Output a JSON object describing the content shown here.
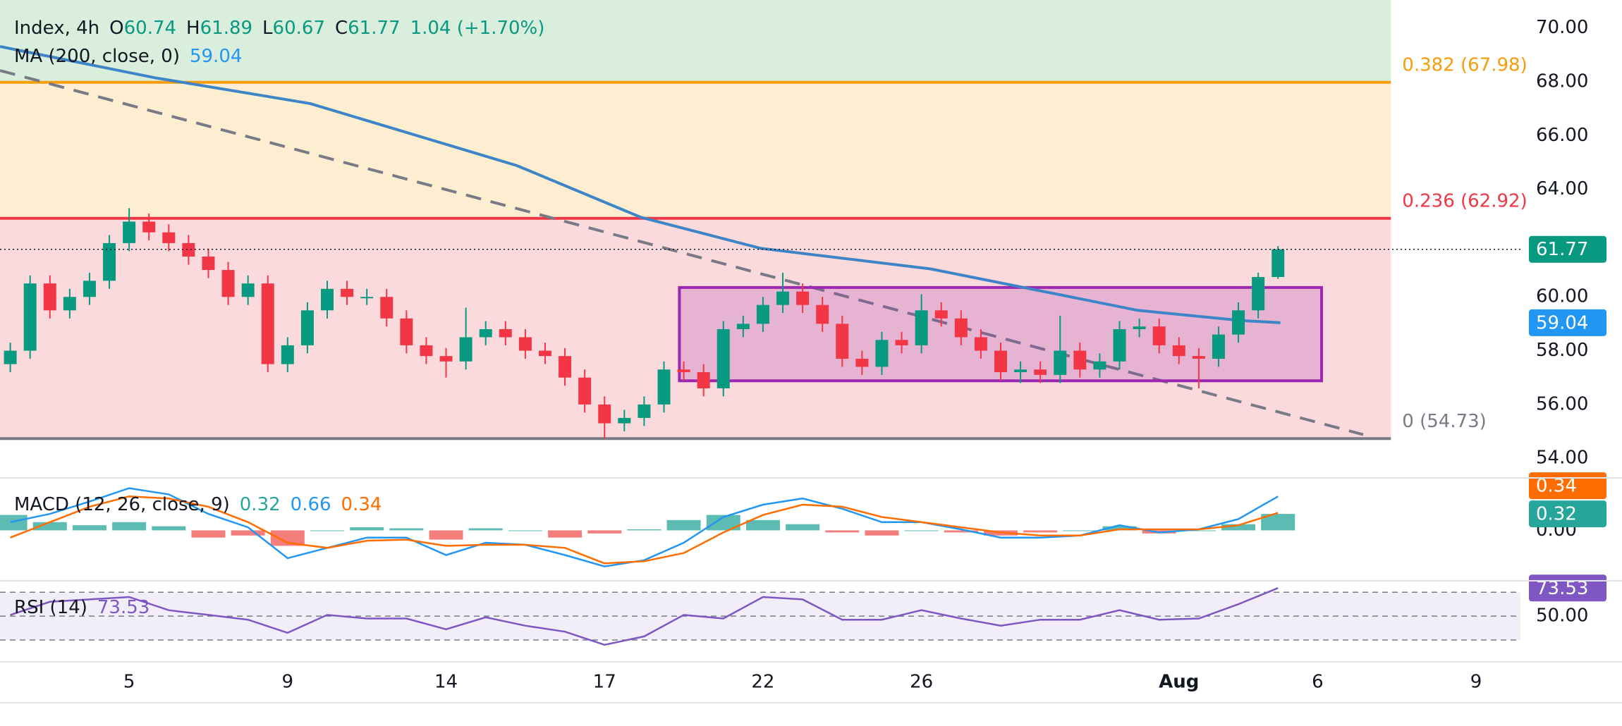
{
  "header": {
    "symbol": "Index, 4h",
    "fields": [
      {
        "key": "O",
        "value": "60.74"
      },
      {
        "key": "H",
        "value": "61.89"
      },
      {
        "key": "L",
        "value": "60.67"
      },
      {
        "key": "C",
        "value": "61.77"
      }
    ],
    "change": "1.04 (+1.70%)",
    "ma_label": "MA (200, close, 0)",
    "ma_value": "59.04"
  },
  "chart_data": [
    {
      "type": "candlestick",
      "up_color": "#089981",
      "down_color": "#f23645",
      "x": [
        -3,
        -2.5,
        -2,
        -1.5,
        -1,
        -0.5,
        0,
        0.5,
        1,
        1.5,
        2,
        2.5,
        3,
        3.5,
        4,
        4.5,
        5,
        5.5,
        6,
        6.5,
        7,
        7.5,
        8,
        8.5,
        9,
        9.5,
        10,
        10.5,
        11,
        11.5,
        12,
        12.5,
        13,
        13.5,
        14,
        14.5,
        15,
        15.5,
        16,
        16.5,
        17,
        17.5,
        18,
        18.5,
        19,
        19.5,
        20,
        20.5,
        21,
        21.5,
        22,
        22.5,
        23,
        23.5,
        24,
        24.5,
        25,
        25.5,
        26,
        26.5,
        27,
        27.5,
        28,
        28.5,
        29
      ],
      "open": [
        57.5,
        58.0,
        60.5,
        59.5,
        60.0,
        60.6,
        62.0,
        62.8,
        62.4,
        62.0,
        61.5,
        61.0,
        60.0,
        60.5,
        57.5,
        58.2,
        59.5,
        60.3,
        60.0,
        60.0,
        59.2,
        58.2,
        57.8,
        57.6,
        58.5,
        58.8,
        58.5,
        58.0,
        57.8,
        57.0,
        56.0,
        55.3,
        55.5,
        56.0,
        57.3,
        57.2,
        56.6,
        58.8,
        59.0,
        59.7,
        60.2,
        59.7,
        59.0,
        57.7,
        57.4,
        58.4,
        58.2,
        59.5,
        59.2,
        58.5,
        58.0,
        57.2,
        57.3,
        57.1,
        58.0,
        57.3,
        57.6,
        58.8,
        58.9,
        58.2,
        57.8,
        57.7,
        58.6,
        59.5,
        60.74
      ],
      "high": [
        58.3,
        60.8,
        60.8,
        60.3,
        60.9,
        62.3,
        63.3,
        63.1,
        62.7,
        62.3,
        61.8,
        61.3,
        60.8,
        60.8,
        58.5,
        59.8,
        60.6,
        60.6,
        60.3,
        60.3,
        59.5,
        58.5,
        58.1,
        59.6,
        59.1,
        59.1,
        58.8,
        58.3,
        58.1,
        57.3,
        56.3,
        55.8,
        56.3,
        57.6,
        57.6,
        57.5,
        59.1,
        59.3,
        60.0,
        60.9,
        60.5,
        60.0,
        59.3,
        58.0,
        58.7,
        58.7,
        60.1,
        59.8,
        59.5,
        58.8,
        58.3,
        57.6,
        57.6,
        59.3,
        58.3,
        57.9,
        59.1,
        59.2,
        59.2,
        58.5,
        58.1,
        58.9,
        59.8,
        60.9,
        61.89
      ],
      "low": [
        57.2,
        57.7,
        59.2,
        59.2,
        59.7,
        60.3,
        61.7,
        62.1,
        61.7,
        61.2,
        60.7,
        59.7,
        59.7,
        57.2,
        57.2,
        57.9,
        59.2,
        59.7,
        59.7,
        58.9,
        57.9,
        57.5,
        57.0,
        57.3,
        58.2,
        58.2,
        57.7,
        57.5,
        56.7,
        55.7,
        54.73,
        55.0,
        55.2,
        55.7,
        56.9,
        56.3,
        56.3,
        58.5,
        58.7,
        59.4,
        59.4,
        58.7,
        57.4,
        57.1,
        57.1,
        57.9,
        57.9,
        58.9,
        58.2,
        57.7,
        56.9,
        56.8,
        56.8,
        56.8,
        57.0,
        57.0,
        57.3,
        58.5,
        57.9,
        57.5,
        56.6,
        57.4,
        58.3,
        59.2,
        60.67
      ],
      "close": [
        58.0,
        60.5,
        59.5,
        60.0,
        60.6,
        62.0,
        62.8,
        62.4,
        62.0,
        61.5,
        61.0,
        60.0,
        60.5,
        57.5,
        58.2,
        59.5,
        60.3,
        60.0,
        60.0,
        59.2,
        58.2,
        57.8,
        57.6,
        58.5,
        58.8,
        58.5,
        58.0,
        57.8,
        57.0,
        56.0,
        55.3,
        55.5,
        56.0,
        57.3,
        57.2,
        56.6,
        58.8,
        59.0,
        59.7,
        60.2,
        59.7,
        59.0,
        57.7,
        57.4,
        58.4,
        58.2,
        59.5,
        59.2,
        58.5,
        58.0,
        57.2,
        57.3,
        57.1,
        58.0,
        57.3,
        57.6,
        58.8,
        58.9,
        58.2,
        57.8,
        57.7,
        58.6,
        59.5,
        60.74,
        61.77
      ],
      "xlim": [
        -3.26,
        35.12
      ],
      "ylim": [
        53.27,
        71.04
      ],
      "yticks": [
        {
          "value": 54,
          "label": "54.00"
        },
        {
          "value": 56,
          "label": "56.00"
        },
        {
          "value": 58,
          "label": "58.00"
        },
        {
          "value": 60,
          "label": "60.00"
        },
        {
          "value": 64,
          "label": "64.00"
        },
        {
          "value": 66,
          "label": "66.00"
        },
        {
          "value": 68,
          "label": "68.00"
        },
        {
          "value": 70,
          "label": "70.00"
        }
      ],
      "xticks": [
        {
          "value": 0,
          "label": "5"
        },
        {
          "value": 4,
          "label": "9"
        },
        {
          "value": 8,
          "label": "14"
        },
        {
          "value": 12,
          "label": "17"
        },
        {
          "value": 16,
          "label": "22"
        },
        {
          "value": 20,
          "label": "26"
        },
        {
          "value": 26.5,
          "label": "Aug"
        },
        {
          "value": 30,
          "label": "6"
        },
        {
          "value": 34,
          "label": "9"
        }
      ],
      "ma": {
        "color": "#3d85c6",
        "x": [
          -3.26,
          0.65,
          4.57,
          9.79,
          12.92,
          15.93,
          20.23,
          22.85,
          25.46,
          28.07,
          29.06
        ],
        "values": [
          69.31,
          68.15,
          67.19,
          64.88,
          62.96,
          61.81,
          61.04,
          60.27,
          59.5,
          59.12,
          59.04
        ]
      },
      "trendline": {
        "color": "#787b86",
        "x": [
          -3.26,
          31.15
        ],
        "values": [
          68.42,
          54.88
        ]
      },
      "fib_x_end": 31.85,
      "fib_levels": [
        {
          "value": 54.73,
          "label": "0 (54.73)",
          "color": "#787b86",
          "fill": "#fbdadd"
        },
        {
          "value": 62.92,
          "label": "0.236 (62.92)",
          "color": "#f23645",
          "fill": "#fdeed2"
        },
        {
          "value": 67.98,
          "label": "0.382 (67.98)",
          "color": "#f59d0b",
          "fill": "#d9eedc"
        }
      ],
      "box": {
        "x": [
          13.89,
          30.1
        ],
        "y": [
          56.88,
          60.35
        ],
        "color": "#9c27b0"
      },
      "last_price": {
        "value": 61.77,
        "label": "61.77",
        "color": "#089981"
      },
      "ma_price": {
        "value": 59.04,
        "label": "59.04",
        "color": "#2196f3"
      }
    },
    {
      "type": "macd",
      "title": "MACD (12, 26, close, 9)",
      "x": [
        -3,
        -2,
        -1,
        0,
        1,
        2,
        3,
        4,
        5,
        6,
        7,
        8,
        9,
        10,
        11,
        12,
        13,
        14,
        15,
        16,
        17,
        18,
        19,
        20,
        21,
        22,
        23,
        24,
        25,
        26,
        27,
        28,
        29
      ],
      "histogram": {
        "up_color": "#26a69a",
        "down_color": "#ef5350",
        "value_label": "0.32",
        "values": [
          0.3,
          0.16,
          0.1,
          0.16,
          0.08,
          -0.14,
          -0.1,
          -0.3,
          0,
          0.06,
          0.04,
          -0.18,
          0.04,
          0,
          -0.14,
          -0.06,
          0.02,
          0.2,
          0.3,
          0.2,
          0.12,
          -0.04,
          -0.1,
          0,
          -0.04,
          -0.1,
          -0.04,
          0,
          0.08,
          -0.06,
          0,
          0.12,
          0.32
        ]
      },
      "macd": {
        "color": "#2196f3",
        "value_label": "0.66",
        "values": [
          0.16,
          0.32,
          0.56,
          0.82,
          0.7,
          0.32,
          0.06,
          -0.54,
          -0.34,
          -0.14,
          -0.14,
          -0.48,
          -0.24,
          -0.28,
          -0.48,
          -0.7,
          -0.58,
          -0.24,
          0.26,
          0.5,
          0.62,
          0.42,
          0.16,
          0.16,
          0.02,
          -0.14,
          -0.14,
          -0.1,
          0.1,
          -0.04,
          0.02,
          0.22,
          0.66
        ]
      },
      "signal": {
        "color": "#ff6d00",
        "value_label": "0.34",
        "values": [
          -0.14,
          0.16,
          0.46,
          0.66,
          0.62,
          0.46,
          0.16,
          -0.24,
          -0.34,
          -0.2,
          -0.18,
          -0.3,
          -0.28,
          -0.28,
          -0.34,
          -0.64,
          -0.6,
          -0.44,
          -0.04,
          0.3,
          0.5,
          0.46,
          0.26,
          0.16,
          0.06,
          -0.04,
          -0.1,
          -0.1,
          0.02,
          0.02,
          0.02,
          0.1,
          0.34
        ]
      },
      "ylim": [
        -0.98,
        1.02
      ],
      "yticks": [
        {
          "value": 0,
          "label": "0.00"
        }
      ]
    },
    {
      "type": "rsi",
      "title": "RSI (14)",
      "color": "#7e57c2",
      "value_label": "73.53",
      "x": [
        -3,
        -2,
        -1,
        0,
        1,
        2,
        3,
        4,
        5,
        6,
        7,
        8,
        9,
        10,
        11,
        12,
        13,
        14,
        15,
        16,
        17,
        18,
        19,
        20,
        21,
        22,
        23,
        24,
        25,
        26,
        27,
        28,
        29
      ],
      "values": [
        51,
        62,
        64,
        66,
        55,
        51,
        47,
        36,
        51,
        48,
        48,
        39,
        49,
        42,
        37,
        26,
        33,
        51,
        48,
        66,
        64,
        47,
        47,
        55,
        48,
        42,
        47,
        47,
        55,
        47,
        48,
        60,
        73.53
      ],
      "bands": [
        70,
        50,
        30
      ],
      "ylim": [
        11.7,
        79.6
      ],
      "yticks": [
        {
          "value": 50,
          "label": "50.00"
        }
      ]
    }
  ]
}
